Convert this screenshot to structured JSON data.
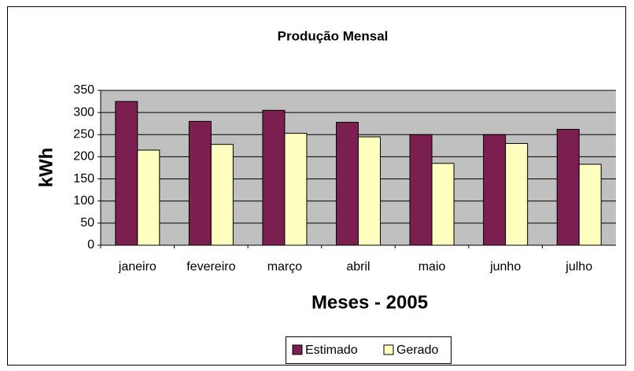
{
  "chart_data": {
    "type": "bar",
    "title": "Produção Mensal",
    "x_label": "Meses - 2005",
    "y_label": "kWh",
    "categories": [
      "janeiro",
      "fevereiro",
      "março",
      "abril",
      "maio",
      "junho",
      "julho"
    ],
    "series": [
      {
        "name": "Estimado",
        "color": "#7b1f50",
        "values": [
          325,
          280,
          305,
          278,
          250,
          250,
          262
        ]
      },
      {
        "name": "Gerado",
        "color": "#ffffc0",
        "values": [
          215,
          228,
          253,
          245,
          185,
          230,
          183
        ]
      }
    ],
    "ylim": [
      0,
      350
    ],
    "yticks": [
      0,
      50,
      100,
      150,
      200,
      250,
      300,
      350
    ],
    "grid": true,
    "plot_background": "#c0c0c0",
    "legend": "bottom"
  }
}
